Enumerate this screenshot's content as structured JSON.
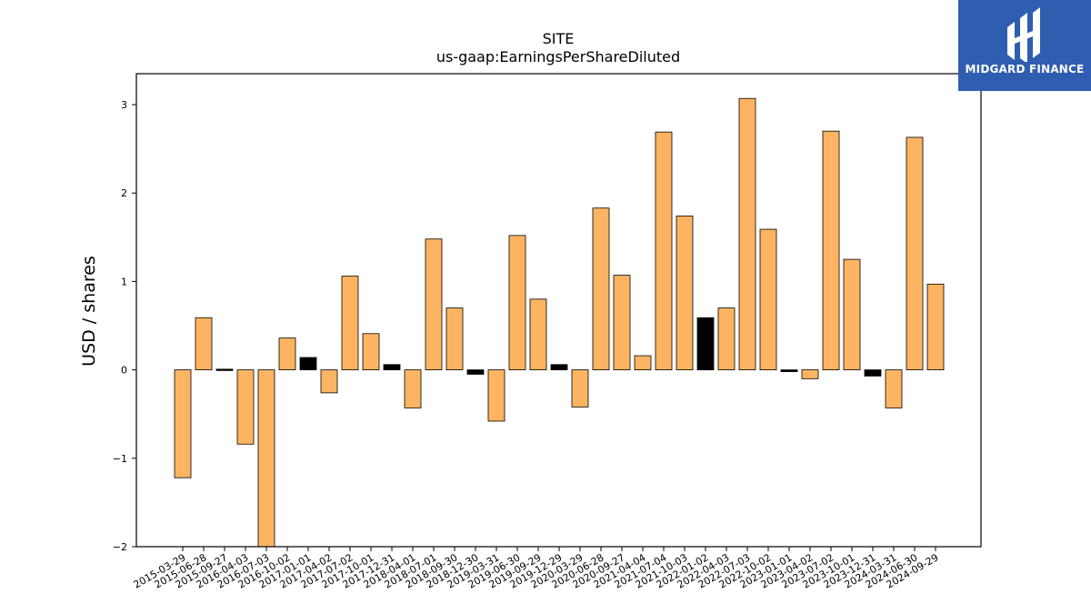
{
  "chart_data": {
    "type": "bar",
    "title": "SITE",
    "subtitle": "us-gaap:EarningsPerShareDiluted",
    "xlabel": "",
    "ylabel": "USD / shares",
    "ylim": [
      -2,
      3.35
    ],
    "yticks": [
      -2,
      -1,
      0,
      1,
      2,
      3
    ],
    "ytick_labels": [
      "−2",
      "−1",
      "0",
      "1",
      "2",
      "3"
    ],
    "grid": false,
    "categories": [
      "2015-03-29",
      "2015-06-28",
      "2015-09-27",
      "2016-04-03",
      "2016-07-03",
      "2016-10-02",
      "2017-01-01",
      "2017-04-02",
      "2017-07-02",
      "2017-10-01",
      "2017-12-31",
      "2018-04-01",
      "2018-07-01",
      "2018-09-30",
      "2018-12-30",
      "2019-03-31",
      "2019-06-30",
      "2019-09-29",
      "2019-12-29",
      "2020-03-29",
      "2020-06-28",
      "2020-09-27",
      "2021-04-04",
      "2021-07-04",
      "2021-10-03",
      "2022-01-02",
      "2022-04-03",
      "2022-07-03",
      "2022-10-02",
      "2023-01-01",
      "2023-04-02",
      "2023-07-02",
      "2023-10-01",
      "2023-12-31",
      "2024-03-31",
      "2024-06-30",
      "2024-09-29"
    ],
    "values": [
      -1.22,
      0.59,
      0.01,
      -0.84,
      -2.05,
      0.36,
      0.14,
      -0.26,
      1.06,
      0.41,
      0.06,
      -0.43,
      1.48,
      0.7,
      -0.05,
      -0.58,
      1.52,
      0.8,
      0.06,
      -0.42,
      1.83,
      1.07,
      0.16,
      2.69,
      1.74,
      0.59,
      0.7,
      3.07,
      1.59,
      -0.02,
      -0.1,
      2.7,
      1.25,
      -0.07,
      -0.43,
      2.63,
      0.97
    ],
    "colors": [
      "#fdb462",
      "#fdb462",
      "#000000",
      "#fdb462",
      "#fdb462",
      "#fdb462",
      "#000000",
      "#fdb462",
      "#fdb462",
      "#fdb462",
      "#000000",
      "#fdb462",
      "#fdb462",
      "#fdb462",
      "#000000",
      "#fdb462",
      "#fdb462",
      "#fdb462",
      "#000000",
      "#fdb462",
      "#fdb462",
      "#fdb462",
      "#fdb462",
      "#fdb462",
      "#fdb462",
      "#000000",
      "#fdb462",
      "#fdb462",
      "#fdb462",
      "#000000",
      "#fdb462",
      "#fdb462",
      "#fdb462",
      "#000000",
      "#fdb462",
      "#fdb462",
      "#fdb462"
    ]
  },
  "logo": {
    "text": "MIDGARD FINANCE",
    "background": "#2f5db0"
  }
}
